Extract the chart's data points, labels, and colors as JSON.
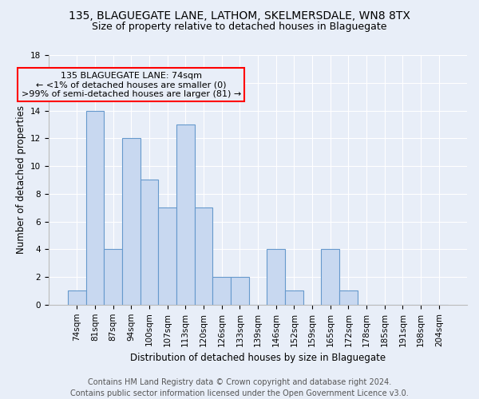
{
  "title": "135, BLAGUEGATE LANE, LATHOM, SKELMERSDALE, WN8 8TX",
  "subtitle": "Size of property relative to detached houses in Blaguegate",
  "xlabel": "Distribution of detached houses by size in Blaguegate",
  "ylabel": "Number of detached properties",
  "bar_color": "#c8d8f0",
  "bar_edge_color": "#6699cc",
  "background_color": "#e8eef8",
  "categories": [
    "74sqm",
    "81sqm",
    "87sqm",
    "94sqm",
    "100sqm",
    "107sqm",
    "113sqm",
    "120sqm",
    "126sqm",
    "133sqm",
    "139sqm",
    "146sqm",
    "152sqm",
    "159sqm",
    "165sqm",
    "172sqm",
    "178sqm",
    "185sqm",
    "191sqm",
    "198sqm",
    "204sqm"
  ],
  "values": [
    1,
    14,
    4,
    12,
    9,
    7,
    13,
    7,
    2,
    2,
    0,
    4,
    1,
    0,
    4,
    1,
    0,
    0,
    0,
    0,
    0
  ],
  "ylim": [
    0,
    18
  ],
  "yticks": [
    0,
    2,
    4,
    6,
    8,
    10,
    12,
    14,
    16,
    18
  ],
  "annotation_line1": "135 BLAGUEGATE LANE: 74sqm",
  "annotation_line2": "← <1% of detached houses are smaller (0)",
  "annotation_line3": ">99% of semi-detached houses are larger (81) →",
  "footer": "Contains HM Land Registry data © Crown copyright and database right 2024.\nContains public sector information licensed under the Open Government Licence v3.0.",
  "grid_color": "#ffffff",
  "title_fontsize": 10,
  "subtitle_fontsize": 9,
  "axis_label_fontsize": 8.5,
  "tick_fontsize": 7.5,
  "annotation_fontsize": 8,
  "footer_fontsize": 7
}
